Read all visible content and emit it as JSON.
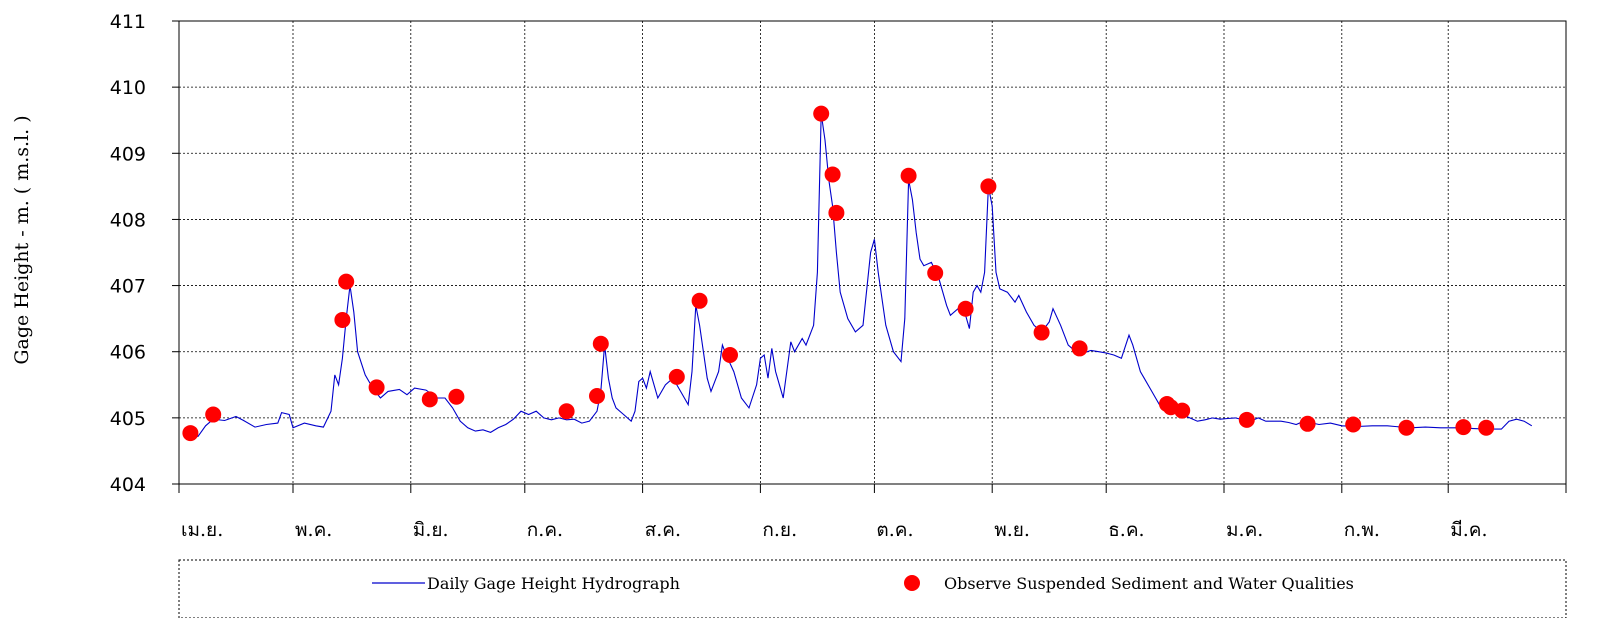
{
  "chart_data": {
    "type": "line",
    "ylabel": "Gage Height   -   m.   ( m.s.l. )",
    "ylim": [
      404,
      411
    ],
    "yticks": [
      404,
      405,
      406,
      407,
      408,
      409,
      410,
      411
    ],
    "x_unit": "day of water year (Apr 1 = day 0)",
    "xlim": [
      0,
      365
    ],
    "month_labels": [
      "เม.ย.",
      "พ.ค.",
      "มิ.ย.",
      "ก.ค.",
      "ส.ค.",
      "ก.ย.",
      "ต.ค.",
      "พ.ย.",
      "ธ.ค.",
      "ม.ค.",
      "ก.พ.",
      "มี.ค."
    ],
    "month_starts": [
      0,
      30,
      61,
      91,
      122,
      153,
      183,
      214,
      244,
      275,
      306,
      334
    ],
    "grid": true,
    "legend_position": "bottom",
    "series": [
      {
        "name": "Daily Gage Height Hydrograph",
        "color": "#0000cc",
        "points": [
          [
            2,
            404.75
          ],
          [
            5,
            404.72
          ],
          [
            7,
            404.88
          ],
          [
            9,
            404.98
          ],
          [
            12,
            404.96
          ],
          [
            15,
            405.02
          ],
          [
            17,
            404.96
          ],
          [
            20,
            404.86
          ],
          [
            23,
            404.9
          ],
          [
            26,
            404.92
          ],
          [
            27,
            405.08
          ],
          [
            29,
            405.05
          ],
          [
            30,
            404.85
          ],
          [
            33,
            404.92
          ],
          [
            36,
            404.88
          ],
          [
            38,
            404.86
          ],
          [
            40,
            405.1
          ],
          [
            41,
            405.65
          ],
          [
            42,
            405.5
          ],
          [
            43,
            405.9
          ],
          [
            44,
            406.5
          ],
          [
            45,
            407.0
          ],
          [
            46,
            406.6
          ],
          [
            47,
            406.0
          ],
          [
            49,
            405.65
          ],
          [
            51,
            405.45
          ],
          [
            53,
            405.3
          ],
          [
            55,
            405.4
          ],
          [
            58,
            405.43
          ],
          [
            60,
            405.35
          ],
          [
            62,
            405.45
          ],
          [
            65,
            405.42
          ],
          [
            68,
            405.3
          ],
          [
            70,
            405.3
          ],
          [
            72,
            405.15
          ],
          [
            74,
            404.95
          ],
          [
            76,
            404.85
          ],
          [
            78,
            404.8
          ],
          [
            80,
            404.82
          ],
          [
            82,
            404.78
          ],
          [
            84,
            404.85
          ],
          [
            86,
            404.9
          ],
          [
            88,
            404.98
          ],
          [
            90,
            405.1
          ],
          [
            92,
            405.05
          ],
          [
            94,
            405.1
          ],
          [
            96,
            405.0
          ],
          [
            98,
            404.97
          ],
          [
            100,
            405.0
          ],
          [
            102,
            404.97
          ],
          [
            104,
            404.98
          ],
          [
            106,
            404.92
          ],
          [
            108,
            404.95
          ],
          [
            110,
            405.1
          ],
          [
            111,
            405.4
          ],
          [
            112,
            406.1
          ],
          [
            113,
            405.6
          ],
          [
            114,
            405.3
          ],
          [
            115,
            405.15
          ],
          [
            117,
            405.05
          ],
          [
            119,
            404.95
          ],
          [
            120,
            405.1
          ],
          [
            121,
            405.55
          ],
          [
            122,
            405.6
          ],
          [
            123,
            405.45
          ],
          [
            124,
            405.7
          ],
          [
            126,
            405.3
          ],
          [
            128,
            405.5
          ],
          [
            130,
            405.6
          ],
          [
            132,
            405.4
          ],
          [
            134,
            405.2
          ],
          [
            135,
            405.7
          ],
          [
            136,
            406.7
          ],
          [
            137,
            406.4
          ],
          [
            139,
            405.6
          ],
          [
            140,
            405.4
          ],
          [
            142,
            405.7
          ],
          [
            143,
            406.1
          ],
          [
            144,
            405.95
          ],
          [
            146,
            405.7
          ],
          [
            148,
            405.3
          ],
          [
            150,
            405.15
          ],
          [
            152,
            405.5
          ],
          [
            153,
            405.9
          ],
          [
            154,
            405.95
          ],
          [
            155,
            405.6
          ],
          [
            156,
            406.05
          ],
          [
            157,
            405.7
          ],
          [
            158,
            405.5
          ],
          [
            159,
            405.3
          ],
          [
            161,
            406.15
          ],
          [
            162,
            406.0
          ],
          [
            164,
            406.2
          ],
          [
            165,
            406.1
          ],
          [
            167,
            406.4
          ],
          [
            168,
            407.2
          ],
          [
            169,
            409.6
          ],
          [
            170,
            409.2
          ],
          [
            171,
            408.6
          ],
          [
            172,
            408.2
          ],
          [
            173,
            407.5
          ],
          [
            174,
            406.9
          ],
          [
            176,
            406.5
          ],
          [
            178,
            406.3
          ],
          [
            180,
            406.4
          ],
          [
            182,
            407.5
          ],
          [
            183,
            407.7
          ],
          [
            184,
            407.2
          ],
          [
            186,
            406.4
          ],
          [
            188,
            406.0
          ],
          [
            190,
            405.85
          ],
          [
            191,
            406.5
          ],
          [
            192,
            408.6
          ],
          [
            193,
            408.3
          ],
          [
            194,
            407.8
          ],
          [
            195,
            407.4
          ],
          [
            196,
            407.3
          ],
          [
            198,
            407.35
          ],
          [
            200,
            407.1
          ],
          [
            202,
            406.7
          ],
          [
            203,
            406.55
          ],
          [
            205,
            406.65
          ],
          [
            207,
            406.55
          ],
          [
            208,
            406.35
          ],
          [
            209,
            406.9
          ],
          [
            210,
            407.0
          ],
          [
            211,
            406.9
          ],
          [
            212,
            407.2
          ],
          [
            213,
            408.5
          ],
          [
            214,
            408.2
          ],
          [
            215,
            407.2
          ],
          [
            216,
            406.95
          ],
          [
            218,
            406.9
          ],
          [
            220,
            406.75
          ],
          [
            221,
            406.85
          ],
          [
            223,
            406.6
          ],
          [
            225,
            406.4
          ],
          [
            227,
            406.3
          ],
          [
            229,
            406.45
          ],
          [
            230,
            406.65
          ],
          [
            232,
            406.4
          ],
          [
            234,
            406.1
          ],
          [
            236,
            406.0
          ],
          [
            238,
            405.98
          ],
          [
            240,
            406.02
          ],
          [
            242,
            406.0
          ],
          [
            244,
            405.98
          ],
          [
            246,
            405.95
          ],
          [
            248,
            405.9
          ],
          [
            250,
            406.25
          ],
          [
            251,
            406.1
          ],
          [
            253,
            405.7
          ],
          [
            254,
            405.6
          ],
          [
            256,
            405.4
          ],
          [
            258,
            405.2
          ],
          [
            260,
            405.12
          ],
          [
            262,
            405.1
          ],
          [
            264,
            405.05
          ],
          [
            266,
            405.0
          ],
          [
            268,
            404.95
          ],
          [
            270,
            404.97
          ],
          [
            272,
            405.0
          ],
          [
            274,
            404.98
          ],
          [
            276,
            404.99
          ],
          [
            278,
            405.0
          ],
          [
            280,
            404.97
          ],
          [
            282,
            404.95
          ],
          [
            284,
            405.0
          ],
          [
            286,
            404.95
          ],
          [
            290,
            404.95
          ],
          [
            292,
            404.93
          ],
          [
            294,
            404.9
          ],
          [
            296,
            404.95
          ],
          [
            300,
            404.9
          ],
          [
            303,
            404.92
          ],
          [
            306,
            404.88
          ],
          [
            310,
            404.87
          ],
          [
            314,
            404.88
          ],
          [
            318,
            404.88
          ],
          [
            320,
            404.87
          ],
          [
            324,
            404.85
          ],
          [
            328,
            404.86
          ],
          [
            332,
            404.85
          ],
          [
            336,
            404.85
          ],
          [
            340,
            404.84
          ],
          [
            344,
            404.83
          ],
          [
            348,
            404.83
          ],
          [
            350,
            404.95
          ],
          [
            352,
            404.98
          ],
          [
            354,
            404.95
          ],
          [
            356,
            404.88
          ]
        ]
      },
      {
        "name": "Observe Suspended Sediment and Water Qualities",
        "color": "#ff0000",
        "points": [
          [
            3,
            404.77
          ],
          [
            9,
            405.05
          ],
          [
            43,
            406.48
          ],
          [
            44,
            407.06
          ],
          [
            52,
            405.46
          ],
          [
            66,
            405.28
          ],
          [
            73,
            405.32
          ],
          [
            102,
            405.1
          ],
          [
            110,
            405.33
          ],
          [
            111,
            406.12
          ],
          [
            131,
            405.62
          ],
          [
            137,
            406.77
          ],
          [
            145,
            405.95
          ],
          [
            169,
            409.6
          ],
          [
            172,
            408.68
          ],
          [
            173,
            408.1
          ],
          [
            192,
            408.66
          ],
          [
            199,
            407.19
          ],
          [
            207,
            406.65
          ],
          [
            213,
            408.5
          ],
          [
            227,
            406.29
          ],
          [
            237,
            406.05
          ],
          [
            260,
            405.21
          ],
          [
            261,
            405.16
          ],
          [
            264,
            405.11
          ],
          [
            281,
            404.97
          ],
          [
            297,
            404.91
          ],
          [
            309,
            404.9
          ],
          [
            323,
            404.85
          ],
          [
            338,
            404.86
          ],
          [
            344,
            404.85
          ]
        ]
      }
    ]
  }
}
